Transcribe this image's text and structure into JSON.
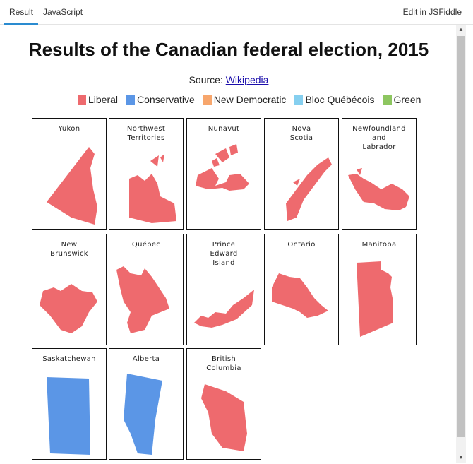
{
  "tabs": {
    "result": "Result",
    "javascript": "JavaScript",
    "edit": "Edit in JSFiddle"
  },
  "title": "Results of the Canadian federal election, 2015",
  "source": {
    "prefix": "Source: ",
    "link": "Wikipedia"
  },
  "legend": [
    {
      "label": "Liberal",
      "color": "#ee6a6e"
    },
    {
      "label": "Conservative",
      "color": "#5b96e6"
    },
    {
      "label": "New Democratic",
      "color": "#f7a66c"
    },
    {
      "label": "Bloc Québécois",
      "color": "#85cfef"
    },
    {
      "label": "Green",
      "color": "#8dc660"
    }
  ],
  "provinces": [
    {
      "name": "Yukon",
      "party": "Liberal",
      "color": "#ee6a6e"
    },
    {
      "name": "Northwest\nTerritories",
      "party": "Liberal",
      "color": "#ee6a6e"
    },
    {
      "name": "Nunavut",
      "party": "Liberal",
      "color": "#ee6a6e"
    },
    {
      "name": "Nova\nScotia",
      "party": "Liberal",
      "color": "#ee6a6e"
    },
    {
      "name": "Newfoundland\nand\nLabrador",
      "party": "Liberal",
      "color": "#ee6a6e"
    },
    {
      "name": "New\nBrunswick",
      "party": "Liberal",
      "color": "#ee6a6e"
    },
    {
      "name": "Québec",
      "party": "Liberal",
      "color": "#ee6a6e"
    },
    {
      "name": "Prince\nEdward\nIsland",
      "party": "Liberal",
      "color": "#ee6a6e"
    },
    {
      "name": "Ontario",
      "party": "Liberal",
      "color": "#ee6a6e"
    },
    {
      "name": "Manitoba",
      "party": "Liberal",
      "color": "#ee6a6e"
    },
    {
      "name": "Saskatchewan",
      "party": "Conservative",
      "color": "#5b96e6"
    },
    {
      "name": "Alberta",
      "party": "Conservative",
      "color": "#5b96e6"
    },
    {
      "name": "British\nColumbia",
      "party": "Liberal",
      "color": "#ee6a6e"
    }
  ]
}
